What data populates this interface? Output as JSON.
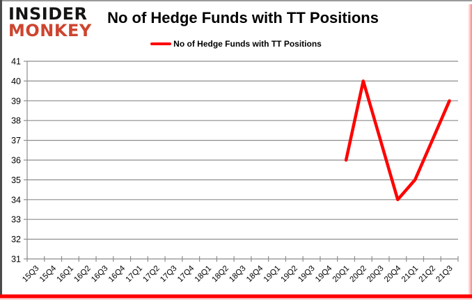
{
  "logo": {
    "line1": "INSIDER",
    "line2": "MONKEY"
  },
  "title": "No of Hedge Funds with TT Positions",
  "legend": {
    "label": "No of Hedge Funds with TT Positions"
  },
  "colors": {
    "series_red": "#ff0000",
    "logo_red": "#cd452f",
    "grid_gray": "#8c8c8c",
    "axis_text": "#000000",
    "border_bottom_red": "#ff0000"
  },
  "chart_data": {
    "type": "line",
    "title": "No of Hedge Funds with TT Positions",
    "categories": [
      "15Q3",
      "15Q4",
      "16Q1",
      "16Q2",
      "16Q3",
      "16Q4",
      "17Q1",
      "17Q2",
      "17Q3",
      "17Q4",
      "18Q1",
      "18Q2",
      "18Q3",
      "18Q4",
      "19Q1",
      "19Q2",
      "19Q3",
      "19Q4",
      "20Q1",
      "20Q2",
      "20Q3",
      "20Q4",
      "21Q1",
      "21Q2",
      "21Q3"
    ],
    "series": [
      {
        "name": "No of Hedge Funds with TT Positions",
        "color": "#ff0000",
        "values": [
          null,
          null,
          null,
          null,
          null,
          null,
          null,
          null,
          null,
          null,
          null,
          null,
          null,
          null,
          null,
          null,
          null,
          null,
          36,
          40,
          37,
          34,
          35,
          37,
          39
        ]
      }
    ],
    "yticks": [
      31,
      32,
      33,
      34,
      35,
      36,
      37,
      38,
      39,
      40,
      41
    ],
    "ylim": [
      31,
      41
    ],
    "xlabel": "",
    "ylabel": "",
    "grid": true,
    "legend_position": "top-center"
  }
}
